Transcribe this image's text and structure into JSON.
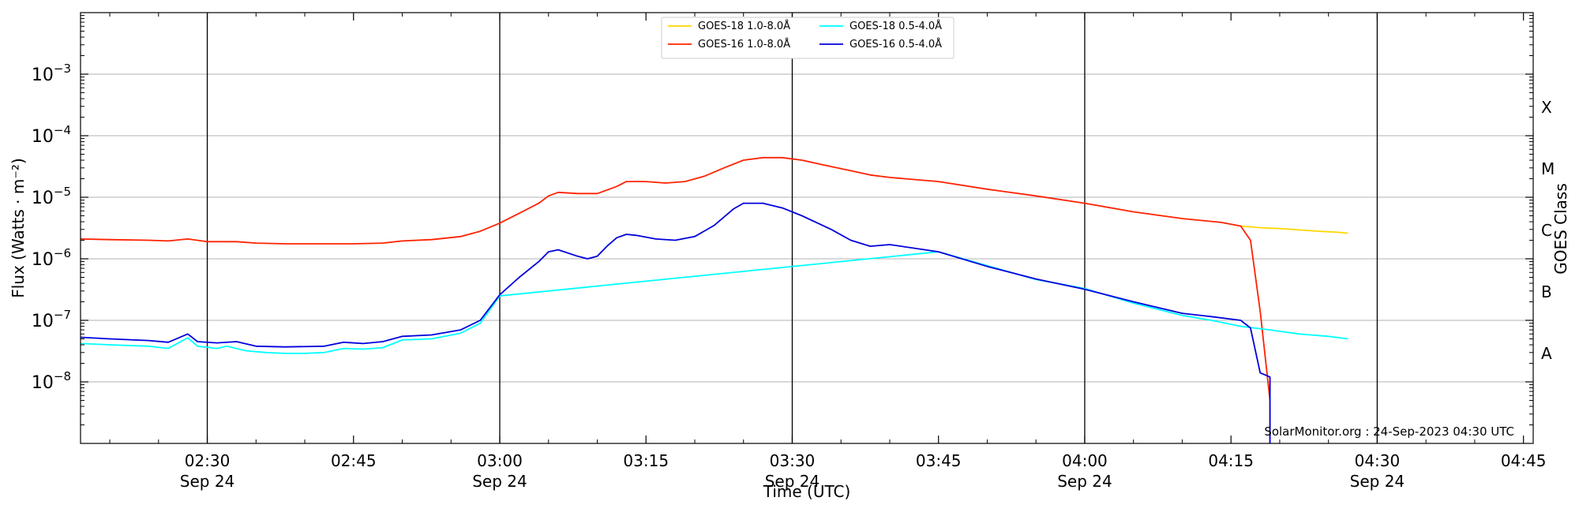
{
  "chart_data": {
    "type": "line",
    "title": "",
    "xlabel": "Time (UTC)",
    "ylabel": "Flux (Watts · m⁻²)",
    "y2label": "GOES Class",
    "yscale": "log",
    "xlim": [
      "02:17",
      "04:46"
    ],
    "ylim": [
      1e-09,
      0.01
    ],
    "y_ticks": [
      {
        "value": 1e-08,
        "base": "10",
        "exp": "−8"
      },
      {
        "value": 1e-07,
        "base": "10",
        "exp": "−7"
      },
      {
        "value": 1e-06,
        "base": "10",
        "exp": "−6"
      },
      {
        "value": 1e-05,
        "base": "10",
        "exp": "−5"
      },
      {
        "value": 0.0001,
        "base": "10",
        "exp": "−4"
      },
      {
        "value": 0.001,
        "base": "10",
        "exp": "−3"
      }
    ],
    "x_ticks": [
      {
        "time": "02:30",
        "label": "02:30",
        "date": "Sep 24"
      },
      {
        "time": "02:45",
        "label": "02:45",
        "date": ""
      },
      {
        "time": "03:00",
        "label": "03:00",
        "date": "Sep 24"
      },
      {
        "time": "03:15",
        "label": "03:15",
        "date": ""
      },
      {
        "time": "03:30",
        "label": "03:30",
        "date": "Sep 24"
      },
      {
        "time": "03:45",
        "label": "03:45",
        "date": ""
      },
      {
        "time": "04:00",
        "label": "04:00",
        "date": "Sep 24"
      },
      {
        "time": "04:15",
        "label": "04:15",
        "date": ""
      },
      {
        "time": "04:30",
        "label": "04:30",
        "date": "Sep 24"
      },
      {
        "time": "04:45",
        "label": "04:45",
        "date": ""
      }
    ],
    "vertical_lines": [
      "02:30",
      "03:00",
      "03:30",
      "04:00",
      "04:30"
    ],
    "goes_classes": [
      {
        "label": "A",
        "value": 3e-08
      },
      {
        "label": "B",
        "value": 3e-07
      },
      {
        "label": "C",
        "value": 3e-06
      },
      {
        "label": "M",
        "value": 3e-05
      },
      {
        "label": "X",
        "value": 0.0003
      }
    ],
    "grid": "horizontal",
    "legend_position": "top-center",
    "annotation": "SolarMonitor.org : 24-Sep-2023 04:30 UTC",
    "series": [
      {
        "name": "GOES-18 1.0-8.0Å",
        "color": "#FFD700",
        "points": [
          [
            "04:16",
            3.4e-06
          ],
          [
            "04:18",
            3.2e-06
          ],
          [
            "04:20",
            3.1e-06
          ],
          [
            "04:22",
            2.95e-06
          ],
          [
            "04:24",
            2.8e-06
          ],
          [
            "04:26",
            2.7e-06
          ],
          [
            "04:27",
            2.6e-06
          ]
        ]
      },
      {
        "name": "GOES-16 1.0-8.0Å",
        "color": "#FF2200",
        "points": [
          [
            "02:17",
            2.1e-06
          ],
          [
            "02:20",
            2.05e-06
          ],
          [
            "02:24",
            2e-06
          ],
          [
            "02:26",
            1.95e-06
          ],
          [
            "02:28",
            2.1e-06
          ],
          [
            "02:30",
            1.9e-06
          ],
          [
            "02:33",
            1.9e-06
          ],
          [
            "02:35",
            1.8e-06
          ],
          [
            "02:38",
            1.75e-06
          ],
          [
            "02:42",
            1.75e-06
          ],
          [
            "02:45",
            1.75e-06
          ],
          [
            "02:48",
            1.8e-06
          ],
          [
            "02:50",
            1.95e-06
          ],
          [
            "02:53",
            2.05e-06
          ],
          [
            "02:56",
            2.3e-06
          ],
          [
            "02:58",
            2.8e-06
          ],
          [
            "03:00",
            3.8e-06
          ],
          [
            "03:02",
            5.5e-06
          ],
          [
            "03:04",
            8e-06
          ],
          [
            "03:05",
            1.05e-05
          ],
          [
            "03:06",
            1.2e-05
          ],
          [
            "03:08",
            1.15e-05
          ],
          [
            "03:10",
            1.15e-05
          ],
          [
            "03:12",
            1.5e-05
          ],
          [
            "03:13",
            1.8e-05
          ],
          [
            "03:15",
            1.8e-05
          ],
          [
            "03:17",
            1.7e-05
          ],
          [
            "03:19",
            1.8e-05
          ],
          [
            "03:21",
            2.2e-05
          ],
          [
            "03:23",
            3e-05
          ],
          [
            "03:25",
            4e-05
          ],
          [
            "03:27",
            4.4e-05
          ],
          [
            "03:29",
            4.4e-05
          ],
          [
            "03:31",
            4e-05
          ],
          [
            "03:33",
            3.4e-05
          ],
          [
            "03:36",
            2.7e-05
          ],
          [
            "03:38",
            2.3e-05
          ],
          [
            "03:40",
            2.1e-05
          ],
          [
            "03:45",
            1.8e-05
          ],
          [
            "03:50",
            1.35e-05
          ],
          [
            "03:55",
            1.05e-05
          ],
          [
            "04:00",
            8e-06
          ],
          [
            "04:05",
            5.8e-06
          ],
          [
            "04:10",
            4.5e-06
          ],
          [
            "04:14",
            3.9e-06
          ],
          [
            "04:16",
            3.4e-06
          ],
          [
            "04:17",
            2e-06
          ],
          [
            "04:18",
            1.4e-07
          ],
          [
            "04:19",
            5e-09
          ],
          [
            "04:19",
            1e-09
          ]
        ]
      },
      {
        "name": "GOES-18 0.5-4.0Å",
        "color": "#00FFFF",
        "points": [
          [
            "02:17",
            4.2e-08
          ],
          [
            "02:20",
            4e-08
          ],
          [
            "02:24",
            3.8e-08
          ],
          [
            "02:26",
            3.5e-08
          ],
          [
            "02:28",
            5.2e-08
          ],
          [
            "02:29",
            3.8e-08
          ],
          [
            "02:31",
            3.5e-08
          ],
          [
            "02:32",
            3.8e-08
          ],
          [
            "02:34",
            3.2e-08
          ],
          [
            "02:36",
            3e-08
          ],
          [
            "02:38",
            2.9e-08
          ],
          [
            "02:40",
            2.9e-08
          ],
          [
            "02:42",
            3e-08
          ],
          [
            "02:44",
            3.5e-08
          ],
          [
            "02:46",
            3.4e-08
          ],
          [
            "02:48",
            3.6e-08
          ],
          [
            "02:50",
            4.8e-08
          ],
          [
            "02:53",
            5e-08
          ],
          [
            "02:56",
            6.2e-08
          ],
          [
            "02:58",
            9e-08
          ],
          [
            "03:00",
            2.5e-07
          ],
          [
            "03:45",
            1.3e-06
          ],
          [
            "03:55",
            4.6e-07
          ],
          [
            "04:00",
            3.3e-07
          ],
          [
            "04:05",
            1.9e-07
          ],
          [
            "04:10",
            1.2e-07
          ],
          [
            "04:13",
            1e-07
          ],
          [
            "04:16",
            8e-08
          ],
          [
            "04:19",
            7e-08
          ],
          [
            "04:22",
            6e-08
          ],
          [
            "04:25",
            5.5e-08
          ],
          [
            "04:27",
            5e-08
          ]
        ]
      },
      {
        "name": "GOES-16 0.5-4.0Å",
        "color": "#0000DD",
        "points": [
          [
            "02:17",
            5.3e-08
          ],
          [
            "02:20",
            5e-08
          ],
          [
            "02:24",
            4.7e-08
          ],
          [
            "02:26",
            4.4e-08
          ],
          [
            "02:28",
            6e-08
          ],
          [
            "02:29",
            4.5e-08
          ],
          [
            "02:31",
            4.3e-08
          ],
          [
            "02:33",
            4.5e-08
          ],
          [
            "02:35",
            3.8e-08
          ],
          [
            "02:38",
            3.7e-08
          ],
          [
            "02:42",
            3.8e-08
          ],
          [
            "02:44",
            4.4e-08
          ],
          [
            "02:46",
            4.2e-08
          ],
          [
            "02:48",
            4.5e-08
          ],
          [
            "02:50",
            5.5e-08
          ],
          [
            "02:53",
            5.8e-08
          ],
          [
            "02:56",
            7e-08
          ],
          [
            "02:58",
            1e-07
          ],
          [
            "03:00",
            2.6e-07
          ],
          [
            "03:02",
            5e-07
          ],
          [
            "03:04",
            9e-07
          ],
          [
            "03:05",
            1.3e-06
          ],
          [
            "03:06",
            1.4e-06
          ],
          [
            "03:08",
            1.1e-06
          ],
          [
            "03:09",
            1e-06
          ],
          [
            "03:10",
            1.1e-06
          ],
          [
            "03:11",
            1.6e-06
          ],
          [
            "03:12",
            2.2e-06
          ],
          [
            "03:13",
            2.5e-06
          ],
          [
            "03:14",
            2.4e-06
          ],
          [
            "03:16",
            2.1e-06
          ],
          [
            "03:18",
            2e-06
          ],
          [
            "03:20",
            2.3e-06
          ],
          [
            "03:22",
            3.5e-06
          ],
          [
            "03:24",
            6.5e-06
          ],
          [
            "03:25",
            8e-06
          ],
          [
            "03:27",
            8e-06
          ],
          [
            "03:29",
            6.7e-06
          ],
          [
            "03:31",
            5e-06
          ],
          [
            "03:34",
            3e-06
          ],
          [
            "03:36",
            2e-06
          ],
          [
            "03:38",
            1.6e-06
          ],
          [
            "03:40",
            1.7e-06
          ],
          [
            "03:45",
            1.3e-06
          ],
          [
            "03:50",
            7.5e-07
          ],
          [
            "03:55",
            4.7e-07
          ],
          [
            "04:00",
            3.2e-07
          ],
          [
            "04:05",
            2e-07
          ],
          [
            "04:10",
            1.3e-07
          ],
          [
            "04:13",
            1.15e-07
          ],
          [
            "04:16",
            1e-07
          ],
          [
            "04:17",
            7.5e-08
          ],
          [
            "04:18",
            1.4e-08
          ],
          [
            "04:19",
            1.2e-08
          ],
          [
            "04:19",
            1e-09
          ]
        ]
      }
    ]
  }
}
